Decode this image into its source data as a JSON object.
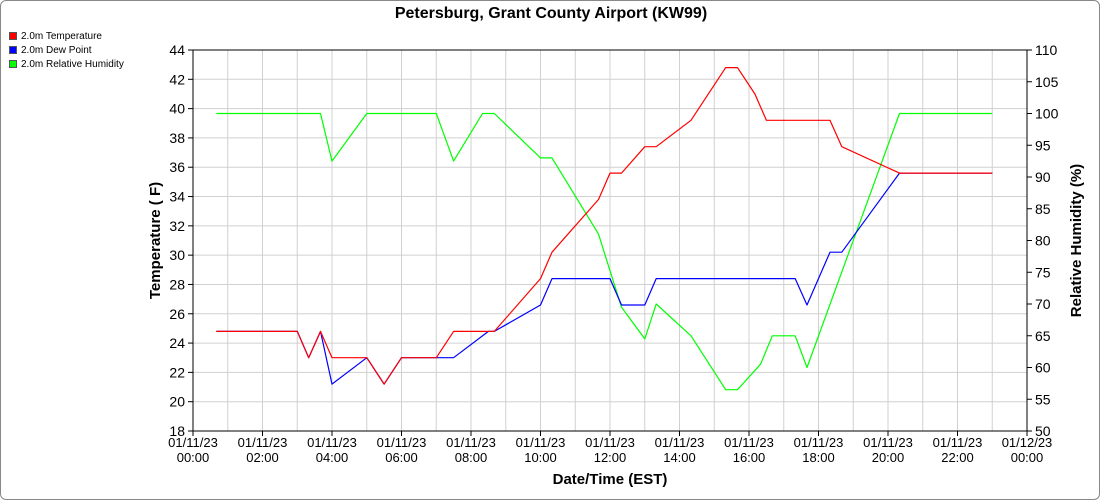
{
  "chart_data": {
    "type": "line",
    "title": "Petersburg, Grant County Airport (KW99)",
    "xlabel": "Date/Time (EST)",
    "ylabel": "Temperature ( F)",
    "y2label": "Relative Humidity (%)",
    "xlim": [
      0,
      24
    ],
    "ylim": [
      18,
      44
    ],
    "y2lim": [
      50,
      110
    ],
    "grid": true,
    "legend_position": "top-left",
    "x_ticks": [
      {
        "x": 0,
        "date": "01/11/23",
        "time": "00:00"
      },
      {
        "x": 2,
        "date": "01/11/23",
        "time": "02:00"
      },
      {
        "x": 4,
        "date": "01/11/23",
        "time": "04:00"
      },
      {
        "x": 6,
        "date": "01/11/23",
        "time": "06:00"
      },
      {
        "x": 8,
        "date": "01/11/23",
        "time": "08:00"
      },
      {
        "x": 10,
        "date": "01/11/23",
        "time": "10:00"
      },
      {
        "x": 12,
        "date": "01/11/23",
        "time": "12:00"
      },
      {
        "x": 14,
        "date": "01/11/23",
        "time": "14:00"
      },
      {
        "x": 16,
        "date": "01/11/23",
        "time": "16:00"
      },
      {
        "x": 18,
        "date": "01/11/23",
        "time": "18:00"
      },
      {
        "x": 20,
        "date": "01/11/23",
        "time": "20:00"
      },
      {
        "x": 22,
        "date": "01/11/23",
        "time": "22:00"
      },
      {
        "x": 24,
        "date": "01/12/23",
        "time": "00:00"
      }
    ],
    "y_ticks": [
      18,
      20,
      22,
      24,
      26,
      28,
      30,
      32,
      34,
      36,
      38,
      40,
      42,
      44
    ],
    "y2_ticks": [
      50,
      55,
      60,
      65,
      70,
      75,
      80,
      85,
      90,
      95,
      100,
      105,
      110
    ],
    "series": [
      {
        "name": "2.0m Temperature",
        "axis": "left",
        "color": "#ff0000",
        "points": [
          [
            0.67,
            24.8
          ],
          [
            1.0,
            24.8
          ],
          [
            2.0,
            24.8
          ],
          [
            3.0,
            24.8
          ],
          [
            3.33,
            23.0
          ],
          [
            3.67,
            24.8
          ],
          [
            4.0,
            23.0
          ],
          [
            5.0,
            23.0
          ],
          [
            5.5,
            21.2
          ],
          [
            6.0,
            23.0
          ],
          [
            7.0,
            23.0
          ],
          [
            7.5,
            24.8
          ],
          [
            8.0,
            24.8
          ],
          [
            8.67,
            24.8
          ],
          [
            10.0,
            28.4
          ],
          [
            10.33,
            30.2
          ],
          [
            11.67,
            33.8
          ],
          [
            12.0,
            35.6
          ],
          [
            12.33,
            35.6
          ],
          [
            13.0,
            37.4
          ],
          [
            13.33,
            37.4
          ],
          [
            14.33,
            39.2
          ],
          [
            15.33,
            42.8
          ],
          [
            15.67,
            42.8
          ],
          [
            16.17,
            41.0
          ],
          [
            16.5,
            39.2
          ],
          [
            17.0,
            39.2
          ],
          [
            18.0,
            39.2
          ],
          [
            18.33,
            39.2
          ],
          [
            18.67,
            37.4
          ],
          [
            20.33,
            35.6
          ],
          [
            21.0,
            35.6
          ],
          [
            23.0,
            35.6
          ]
        ]
      },
      {
        "name": "2.0m Dew Point",
        "axis": "left",
        "color": "#0000ff",
        "points": [
          [
            0.67,
            24.8
          ],
          [
            1.0,
            24.8
          ],
          [
            2.0,
            24.8
          ],
          [
            3.0,
            24.8
          ],
          [
            3.33,
            23.0
          ],
          [
            3.67,
            24.8
          ],
          [
            4.0,
            21.2
          ],
          [
            5.0,
            23.0
          ],
          [
            5.5,
            21.2
          ],
          [
            6.0,
            23.0
          ],
          [
            7.0,
            23.0
          ],
          [
            7.5,
            23.0
          ],
          [
            8.5,
            24.8
          ],
          [
            8.67,
            24.8
          ],
          [
            10.0,
            26.6
          ],
          [
            10.33,
            28.4
          ],
          [
            12.0,
            28.4
          ],
          [
            12.33,
            26.6
          ],
          [
            13.0,
            26.6
          ],
          [
            13.33,
            28.4
          ],
          [
            15.0,
            28.4
          ],
          [
            16.0,
            28.4
          ],
          [
            17.0,
            28.4
          ],
          [
            17.33,
            28.4
          ],
          [
            17.67,
            26.6
          ],
          [
            18.33,
            30.2
          ],
          [
            18.67,
            30.2
          ],
          [
            20.33,
            35.6
          ],
          [
            21.0,
            35.6
          ],
          [
            23.0,
            35.6
          ]
        ]
      },
      {
        "name": "2.0m Relative Humidity",
        "axis": "right",
        "color": "#00ff00",
        "points": [
          [
            0.67,
            100
          ],
          [
            1.0,
            100
          ],
          [
            2.0,
            100
          ],
          [
            3.0,
            100
          ],
          [
            3.67,
            100
          ],
          [
            4.0,
            92.5
          ],
          [
            5.0,
            100
          ],
          [
            6.0,
            100
          ],
          [
            7.0,
            100
          ],
          [
            7.5,
            92.5
          ],
          [
            8.33,
            100
          ],
          [
            8.67,
            100
          ],
          [
            10.0,
            93
          ],
          [
            10.33,
            93
          ],
          [
            11.67,
            81
          ],
          [
            12.33,
            69.5
          ],
          [
            13.0,
            64.5
          ],
          [
            13.33,
            70
          ],
          [
            14.33,
            65
          ],
          [
            15.33,
            56.5
          ],
          [
            15.67,
            56.5
          ],
          [
            16.33,
            60.5
          ],
          [
            16.67,
            65
          ],
          [
            17.33,
            65
          ],
          [
            17.67,
            60
          ],
          [
            20.33,
            100
          ],
          [
            21.0,
            100
          ],
          [
            23.0,
            100
          ]
        ]
      }
    ]
  }
}
